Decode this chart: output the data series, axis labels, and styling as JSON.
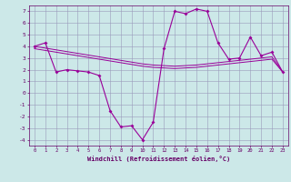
{
  "x": [
    0,
    1,
    2,
    3,
    4,
    5,
    6,
    7,
    8,
    9,
    10,
    11,
    12,
    13,
    14,
    15,
    16,
    17,
    18,
    19,
    20,
    21,
    22,
    23
  ],
  "y_main": [
    4.0,
    4.3,
    1.8,
    2.0,
    1.9,
    1.8,
    1.5,
    -1.5,
    -2.9,
    -2.8,
    -4.0,
    -2.5,
    3.8,
    7.0,
    6.8,
    7.2,
    7.0,
    4.3,
    2.9,
    3.0,
    4.8,
    3.2,
    3.5,
    1.8
  ],
  "y_line1": [
    4.0,
    3.85,
    3.7,
    3.55,
    3.4,
    3.25,
    3.1,
    2.95,
    2.8,
    2.65,
    2.5,
    2.4,
    2.35,
    2.3,
    2.35,
    2.4,
    2.5,
    2.6,
    2.7,
    2.8,
    2.9,
    3.0,
    3.1,
    1.8
  ],
  "y_line2": [
    3.8,
    3.65,
    3.5,
    3.35,
    3.2,
    3.05,
    2.9,
    2.75,
    2.6,
    2.45,
    2.3,
    2.2,
    2.15,
    2.1,
    2.15,
    2.2,
    2.3,
    2.4,
    2.5,
    2.6,
    2.7,
    2.8,
    2.9,
    1.8
  ],
  "xlabel": "Windchill (Refroidissement éolien,°C)",
  "xlim": [
    -0.5,
    23.5
  ],
  "ylim": [
    -4.5,
    7.5
  ],
  "yticks": [
    7,
    6,
    5,
    4,
    3,
    2,
    1,
    0,
    -1,
    -2,
    -3,
    -4
  ],
  "xticks": [
    0,
    1,
    2,
    3,
    4,
    5,
    6,
    7,
    8,
    9,
    10,
    11,
    12,
    13,
    14,
    15,
    16,
    17,
    18,
    19,
    20,
    21,
    22,
    23
  ],
  "line_color": "#990099",
  "bg_color": "#cce8e8",
  "grid_color": "#9999bb",
  "tick_color": "#660066",
  "font_color": "#660066"
}
